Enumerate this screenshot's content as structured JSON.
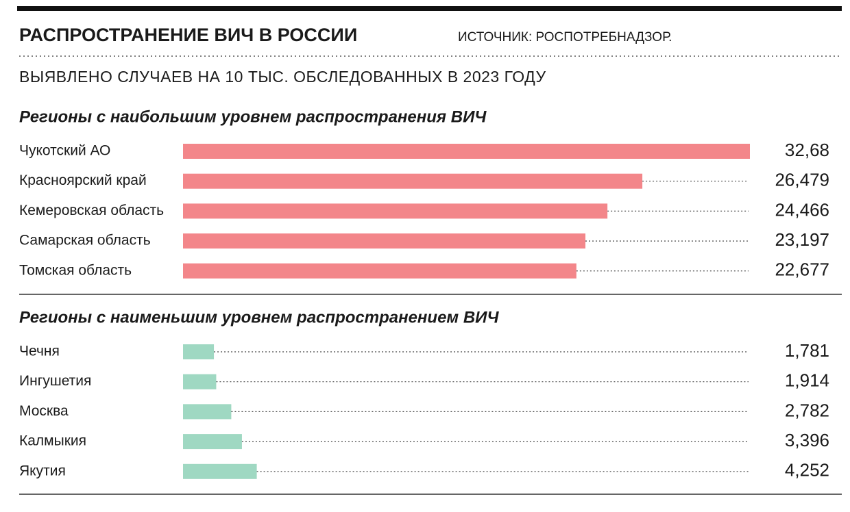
{
  "header": {
    "title": "РАСПРОСТРАНЕНИЕ ВИЧ В РОССИИ",
    "source": "ИСТОЧНИК: РОСПОТРЕБНАДЗОР.",
    "subtitle": "ВЫЯВЛЕНО СЛУЧАЕВ НА 10 ТЫС. ОБСЛЕДОВАННЫХ В 2023 ГОДУ"
  },
  "chart_data": [
    {
      "type": "bar",
      "title": "Регионы с наибольшим уровнем распространения ВИЧ",
      "categories": [
        "Чукотский АО",
        "Красноярский край",
        "Кемеровская область",
        "Самарская область",
        "Томская область"
      ],
      "values": [
        32.68,
        26.479,
        24.466,
        23.197,
        22.677
      ],
      "value_labels": [
        "32,68",
        "26,479",
        "24,466",
        "23,197",
        "22,677"
      ],
      "color": "#f3868a"
    },
    {
      "type": "bar",
      "title": "Регионы с наименьшим уровнем распространением ВИЧ",
      "categories": [
        "Чечня",
        "Ингушетия",
        "Москва",
        "Калмыкия",
        "Якутия"
      ],
      "values": [
        1.781,
        1.914,
        2.782,
        3.396,
        4.252
      ],
      "value_labels": [
        "1,781",
        "1,914",
        "2,782",
        "3,396",
        "4,252"
      ],
      "color": "#9fd8c2"
    }
  ]
}
